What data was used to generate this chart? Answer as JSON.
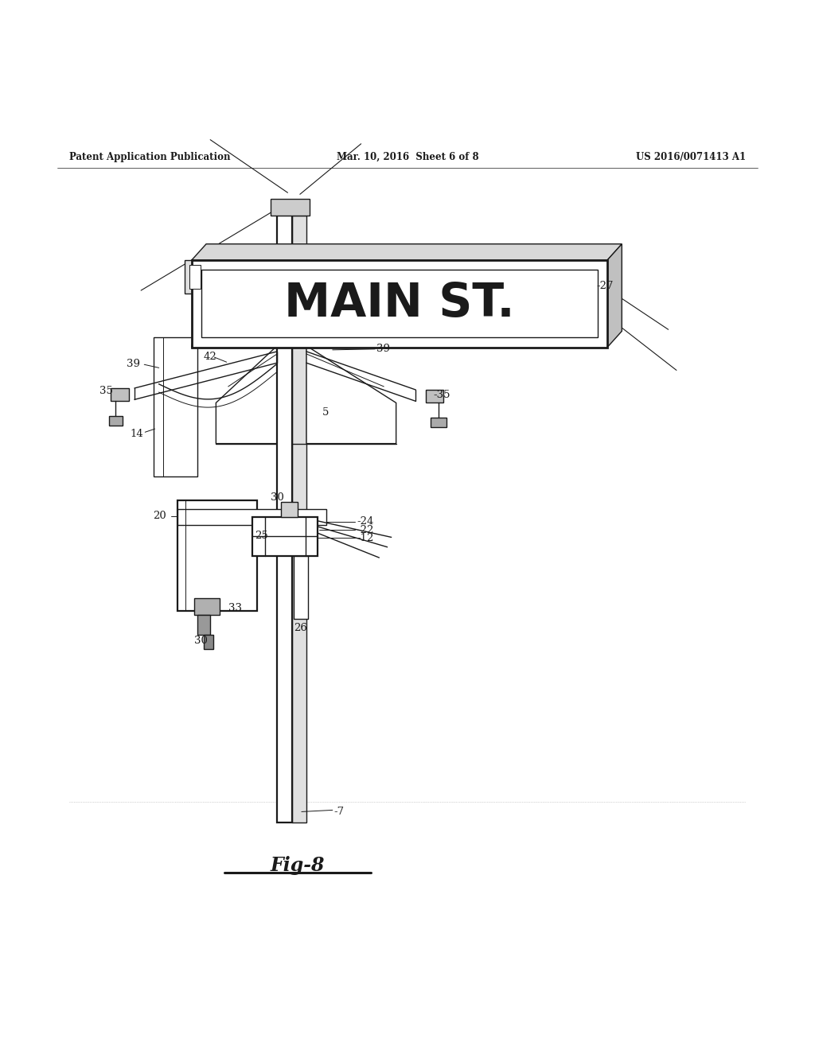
{
  "bg_color": "#ffffff",
  "line_color": "#1a1a1a",
  "header_left": "Patent Application Publication",
  "header_mid": "Mar. 10, 2016  Sheet 6 of 8",
  "header_right": "US 2016/0071413 A1",
  "figure_label": "Fig-8",
  "sign_text": "MAIN ST.",
  "lw_main": 1.6,
  "lw_thin": 1.0,
  "lw_thick": 2.0
}
